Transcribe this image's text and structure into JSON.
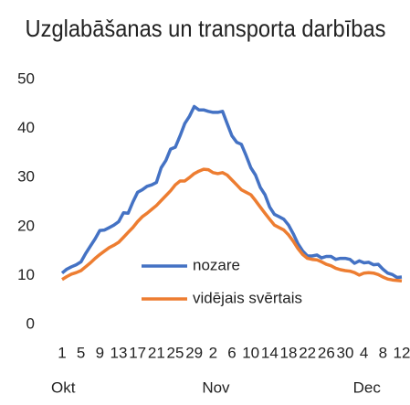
{
  "chart_data": {
    "type": "line",
    "title": "Uzglabāšanas un transporta darbības",
    "categories": [
      "1",
      null,
      null,
      null,
      "5",
      null,
      null,
      null,
      "9",
      null,
      null,
      null,
      "13",
      null,
      null,
      null,
      "17",
      null,
      null,
      null,
      "21",
      null,
      null,
      null,
      "25",
      null,
      null,
      null,
      "29",
      null,
      null,
      null,
      "2",
      null,
      null,
      null,
      "6",
      null,
      null,
      null,
      "10",
      null,
      null,
      null,
      "14",
      null,
      null,
      null,
      "18",
      null,
      null,
      null,
      "22",
      null,
      null,
      null,
      "26",
      null,
      null,
      null,
      "30",
      null,
      null,
      null,
      "4",
      null,
      null,
      null,
      "8",
      null,
      null,
      null,
      "12"
    ],
    "month_labels": [
      {
        "label": "Okt",
        "index": 0
      },
      {
        "label": "Nov",
        "index": 32
      },
      {
        "label": "Dec",
        "index": 64
      }
    ],
    "series": [
      {
        "name": "nozare",
        "color": "#4472c4",
        "values": [
          10.5,
          11.3,
          11.8,
          12.2,
          12.8,
          14.5,
          16,
          17.5,
          19.2,
          19.3,
          19.8,
          20.3,
          21,
          22.8,
          22.7,
          25,
          27,
          27.5,
          28.2,
          28.5,
          29,
          32,
          33.5,
          35.8,
          36.2,
          38.5,
          41,
          42.5,
          44.5,
          43.8,
          43.8,
          43.5,
          43.3,
          43.3,
          43.5,
          41,
          38.5,
          37.2,
          36.8,
          34.5,
          32,
          30.5,
          28,
          26.5,
          24,
          22.5,
          22,
          21.5,
          20.3,
          18.5,
          16.5,
          15,
          14,
          14,
          14.2,
          13.6,
          13.9,
          13.9,
          13.3,
          13.5,
          13.5,
          13.3,
          12.5,
          13,
          12.6,
          12.7,
          12.2,
          12.3,
          11.3,
          10.5,
          10.2,
          9.6,
          9.7
        ]
      },
      {
        "name": "vidējais svērtais",
        "color": "#ed7d31",
        "values": [
          9.2,
          9.8,
          10.3,
          10.6,
          11,
          11.8,
          12.6,
          13.5,
          14.3,
          15,
          15.7,
          16.2,
          16.8,
          17.8,
          18.8,
          19.8,
          21,
          22,
          22.7,
          23.5,
          24.3,
          25.3,
          26.3,
          27.3,
          28.5,
          29.3,
          29.3,
          30,
          30.8,
          31.3,
          31.7,
          31.6,
          31,
          30.8,
          31,
          30.5,
          29.5,
          28.5,
          27.5,
          27,
          26.5,
          25.3,
          24,
          22.7,
          21.5,
          20.3,
          19.8,
          19.3,
          18.3,
          17,
          15.5,
          14.3,
          13.5,
          13.3,
          13.2,
          12.8,
          12.3,
          12,
          11.5,
          11.2,
          11,
          10.9,
          10.6,
          10.1,
          10.5,
          10.6,
          10.5,
          10.2,
          9.7,
          9.3,
          9.1,
          9,
          8.9
        ]
      }
    ],
    "ylim": [
      0,
      50
    ],
    "yticks": [
      0,
      10,
      20,
      30,
      40,
      50
    ],
    "grid": false,
    "legend": "center"
  }
}
